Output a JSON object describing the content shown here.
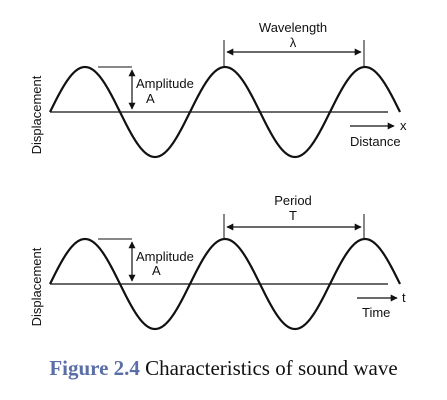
{
  "top_panel": {
    "y_axis_label": "Displacement",
    "amplitude_label": "Amplitude",
    "amplitude_symbol": "A",
    "span_label": "Wavelength",
    "span_symbol": "λ",
    "x_axis_symbol": "x",
    "x_axis_label": "Distance"
  },
  "bottom_panel": {
    "y_axis_label": "Displacement",
    "amplitude_label": "Amplitude",
    "amplitude_symbol": "A",
    "span_label": "Period",
    "span_symbol": "T",
    "x_axis_symbol": "t",
    "x_axis_label": "Time"
  },
  "caption": {
    "number": "Figure 2.4",
    "text": "Characteristics of sound wave"
  },
  "colors": {
    "line": "#111111",
    "caption_number": "#5b6ea8"
  }
}
